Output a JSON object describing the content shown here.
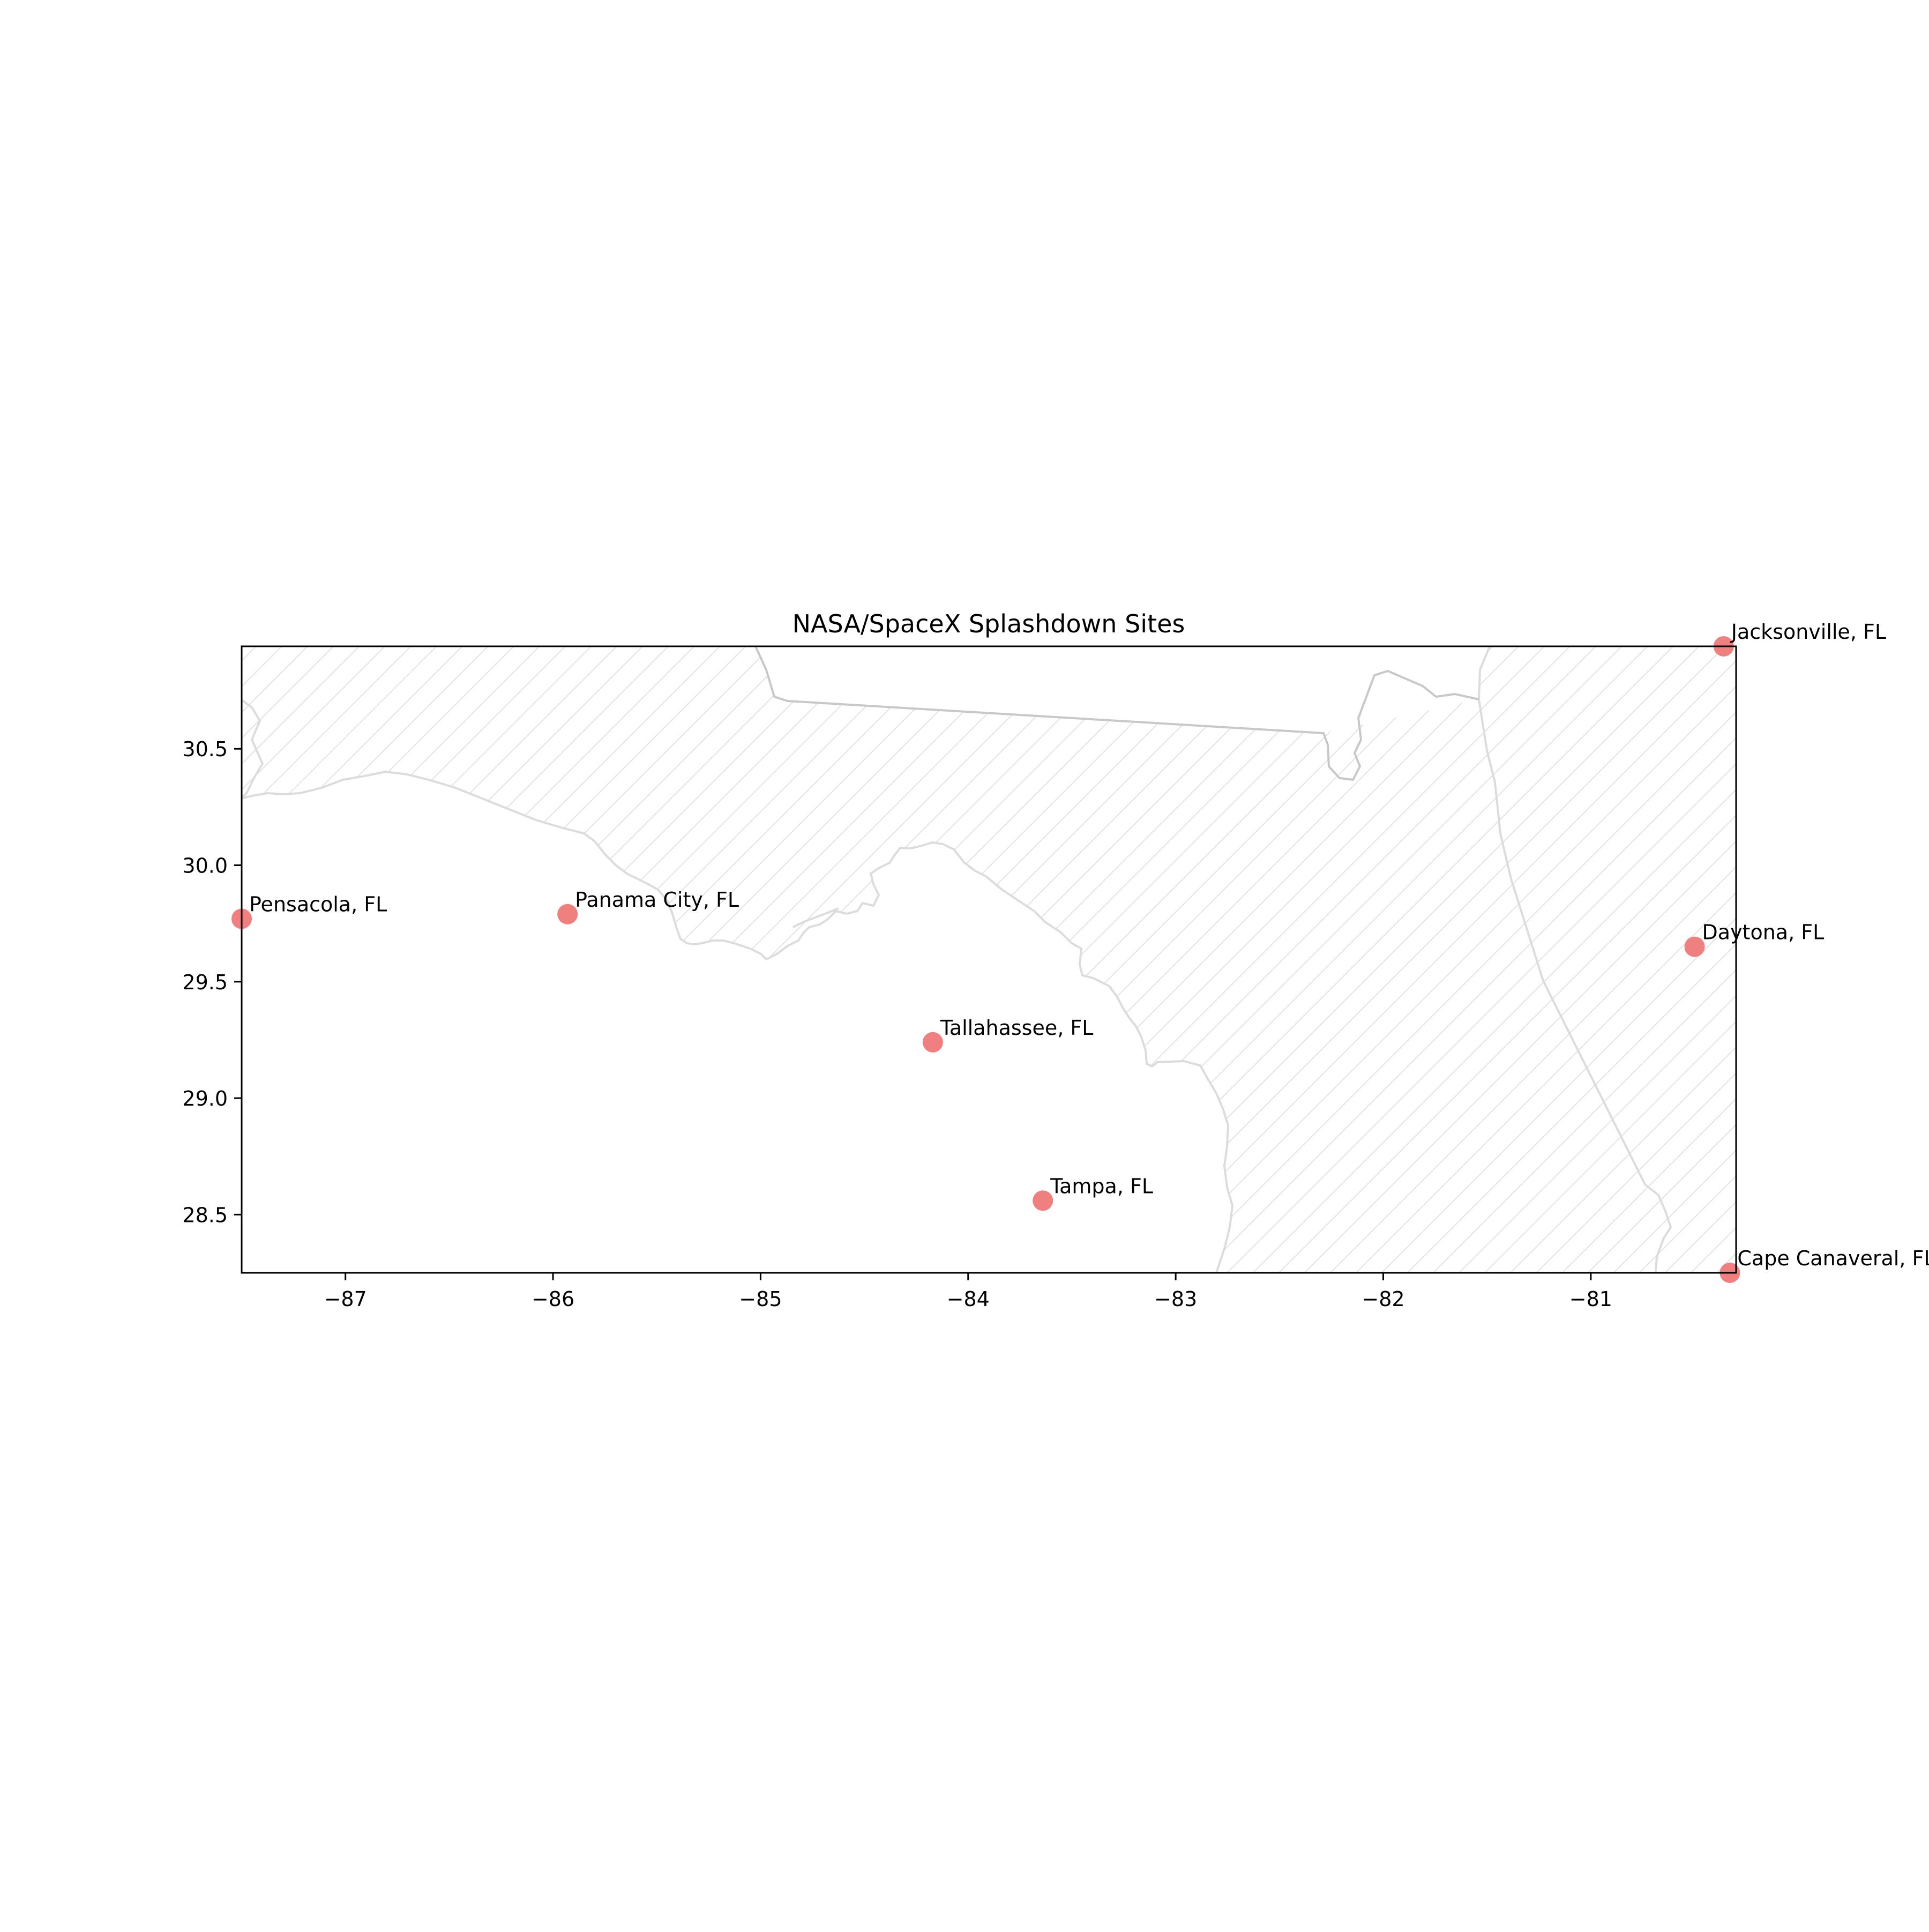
{
  "chart_data": {
    "type": "scatter",
    "title": "NASA/SpaceX Splashdown Sites",
    "xlabel": "",
    "ylabel": "",
    "xlim": [
      -87.5,
      -80.3
    ],
    "ylim": [
      28.25,
      30.94
    ],
    "xticks": [
      {
        "value": -87,
        "label": "−87"
      },
      {
        "value": -86,
        "label": "−86"
      },
      {
        "value": -85,
        "label": "−85"
      },
      {
        "value": -84,
        "label": "−84"
      },
      {
        "value": -83,
        "label": "−83"
      },
      {
        "value": -82,
        "label": "−82"
      },
      {
        "value": -81,
        "label": "−81"
      }
    ],
    "yticks": [
      {
        "value": 28.5,
        "label": "28.5"
      },
      {
        "value": 29.0,
        "label": "29.0"
      },
      {
        "value": 29.5,
        "label": "29.5"
      },
      {
        "value": 30.0,
        "label": "30.0"
      },
      {
        "value": 30.5,
        "label": "30.5"
      }
    ],
    "grid": false,
    "marker_color": "#f08080",
    "land_hatch": "diagonal",
    "land_edge_color": "#dcdcdc",
    "points": [
      {
        "label": "Pensacola, FL",
        "x": -87.5,
        "y": 29.77
      },
      {
        "label": "Panama City, FL",
        "x": -85.93,
        "y": 29.79
      },
      {
        "label": "Tallahassee, FL",
        "x": -84.17,
        "y": 29.24
      },
      {
        "label": "Tampa, FL",
        "x": -83.64,
        "y": 28.56
      },
      {
        "label": "Daytona, FL",
        "x": -80.5,
        "y": 29.65
      },
      {
        "label": "Jacksonville, FL",
        "x": -80.36,
        "y": 30.94
      },
      {
        "label": "Cape Canaveral, FL",
        "x": -80.33,
        "y": 28.25
      }
    ]
  }
}
